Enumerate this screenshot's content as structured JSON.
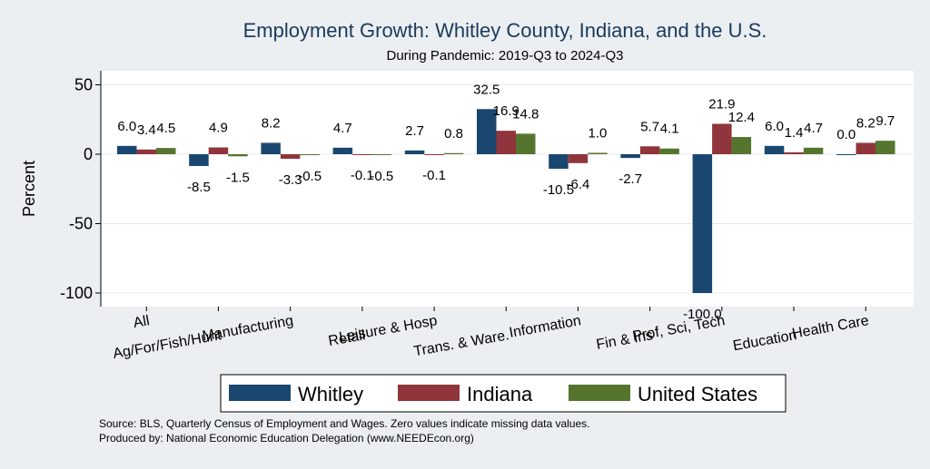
{
  "chart_data": {
    "type": "bar",
    "title": "Employment Growth: Whitley County, Indiana, and the U.S.",
    "subtitle": "During Pandemic: 2019-Q3 to 2024-Q3",
    "xlabel": "",
    "ylabel": "Percent",
    "ylim": [
      -110,
      60
    ],
    "yticks": [
      50,
      0,
      -50,
      -100
    ],
    "grid": true,
    "legend_position": "bottom",
    "categories": [
      "All",
      "Ag/For/Fish/Hunt",
      "Manufacturing",
      "Retail",
      "Leisure & Hosp",
      "Trans. & Ware.",
      "Information",
      "Fin & Ins",
      "Prof, Sci, Tech",
      "Education",
      "Health Care"
    ],
    "series": [
      {
        "name": "Whitley",
        "color": "#1a476f",
        "values": [
          6.0,
          -8.5,
          8.2,
          4.7,
          2.7,
          32.5,
          -10.5,
          -2.7,
          -100.0,
          6.0,
          0.0
        ]
      },
      {
        "name": "Indiana",
        "color": "#90353b",
        "values": [
          3.4,
          4.9,
          -3.3,
          -0.1,
          -0.1,
          16.9,
          -6.4,
          5.7,
          21.9,
          1.4,
          8.2
        ]
      },
      {
        "name": "United States",
        "color": "#55752f",
        "values": [
          4.5,
          -1.5,
          -0.5,
          -0.5,
          0.8,
          14.8,
          1.0,
          4.1,
          12.4,
          4.7,
          9.7
        ]
      }
    ],
    "value_labels": [
      [
        "6.0",
        "3.4",
        "4.5"
      ],
      [
        "-8.5",
        "4.9",
        "-1.5"
      ],
      [
        "8.2",
        "-3.3",
        "-0.5"
      ],
      [
        "4.7",
        "-0.1",
        "-0.5"
      ],
      [
        "2.7",
        "-0.1",
        "0.8"
      ],
      [
        "32.5",
        "16.9",
        "14.8"
      ],
      [
        "-10.5",
        "-6.4",
        "1.0"
      ],
      [
        "-2.7",
        "5.7",
        "4.1"
      ],
      [
        "-100.0",
        "21.9",
        "12.4"
      ],
      [
        "6.0",
        "1.4",
        "4.7"
      ],
      [
        "0.0",
        "8.2",
        "9.7"
      ]
    ]
  },
  "footer": {
    "source": "Source: BLS, Quarterly Census of Employment and Wages. Zero values indicate missing data values.",
    "produced_by": "Produced by: National Economic Education Delegation (www.NEEDEcon.org)"
  },
  "colors": {
    "background": "#ebeff2",
    "plot_background": "#ffffff",
    "title": "#1a3a5c"
  }
}
